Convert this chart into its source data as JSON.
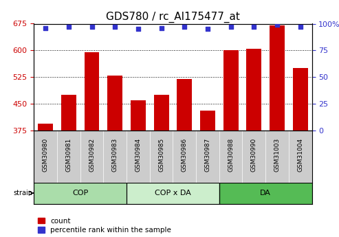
{
  "title": "GDS780 / rc_AI175477_at",
  "categories": [
    "GSM30980",
    "GSM30981",
    "GSM30982",
    "GSM30983",
    "GSM30984",
    "GSM30985",
    "GSM30986",
    "GSM30987",
    "GSM30988",
    "GSM30990",
    "GSM31003",
    "GSM31004"
  ],
  "bar_values": [
    393,
    475,
    595,
    530,
    460,
    475,
    520,
    430,
    600,
    605,
    670,
    550
  ],
  "dot_values": [
    96,
    97,
    97,
    97,
    95,
    96,
    97,
    95,
    97,
    97,
    99,
    97
  ],
  "ylim_left": [
    375,
    675
  ],
  "ylim_right": [
    0,
    100
  ],
  "yticks_left": [
    375,
    450,
    525,
    600,
    675
  ],
  "yticks_right": [
    0,
    25,
    50,
    75,
    100
  ],
  "bar_color": "#cc0000",
  "dot_color": "#3333cc",
  "bar_bottom": 375,
  "groups": [
    {
      "label": "COP",
      "start": 0,
      "end": 4,
      "color": "#aaddaa"
    },
    {
      "label": "COP x DA",
      "start": 4,
      "end": 8,
      "color": "#cceecc"
    },
    {
      "label": "DA",
      "start": 8,
      "end": 12,
      "color": "#55bb55"
    }
  ],
  "sample_bg_color": "#cccccc",
  "legend_count_label": "count",
  "legend_pct_label": "percentile rank within the sample",
  "tick_label_color_left": "#cc0000",
  "tick_label_color_right": "#3333cc",
  "title_fontsize": 11,
  "tick_fontsize": 8,
  "bar_width": 0.65
}
